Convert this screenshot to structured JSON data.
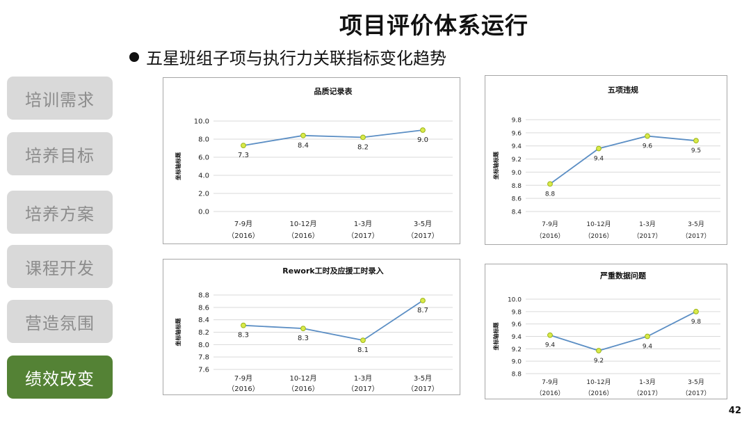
{
  "header": {
    "title": "项目评价体系运行",
    "subtitle": "五星班组子项与执行力关联指标变化趋势"
  },
  "sidebar": {
    "items": [
      {
        "label": "培训需求",
        "active": false
      },
      {
        "label": "培养目标",
        "active": false
      },
      {
        "label": "培养方案",
        "active": false
      },
      {
        "label": "课程开发",
        "active": false
      },
      {
        "label": "营造氛围",
        "active": false
      },
      {
        "label": "绩效改变",
        "active": true
      }
    ]
  },
  "page_number": "42",
  "colors": {
    "line": "#5b8ec4",
    "marker_fill": "#d9ea4a",
    "marker_stroke": "#9bb318",
    "grid": "#d9d9d9",
    "nav_inactive": "#d9d9d9",
    "nav_active": "#548235"
  },
  "chart_data": [
    {
      "type": "line",
      "title": "品质记录表",
      "ylabel": "坐标轴标题",
      "categories": [
        [
          "7-9月",
          "（2016）"
        ],
        [
          "10-12月",
          "（2016）"
        ],
        [
          "1-3月",
          "（2017）"
        ],
        [
          "3-5月",
          "（2017）"
        ]
      ],
      "values": [
        7.3,
        8.4,
        8.2,
        9.0
      ],
      "data_labels": [
        "7.3",
        "8.4",
        "8.2",
        "9.0"
      ],
      "label_position": [
        "below",
        "below",
        "below",
        "below"
      ],
      "ylim": [
        0,
        10
      ],
      "yticks": [
        "0.0",
        "2.0",
        "4.0",
        "6.0",
        "8.0",
        "10.0"
      ],
      "grid": true
    },
    {
      "type": "line",
      "title": "五项违规",
      "ylabel": "坐标轴标题",
      "categories": [
        [
          "7-9月",
          "（2016）"
        ],
        [
          "10-12月",
          "（2016）"
        ],
        [
          "1-3月",
          "（2017）"
        ],
        [
          "3-5月",
          "（2017）"
        ]
      ],
      "values": [
        8.82,
        9.36,
        9.55,
        9.48
      ],
      "data_labels": [
        "8.8",
        "9.4",
        "9.6",
        "9.5"
      ],
      "label_position": [
        "below",
        "below",
        "below",
        "below"
      ],
      "ylim": [
        8.4,
        9.8
      ],
      "yticks": [
        "8.4",
        "8.6",
        "8.8",
        "9.0",
        "9.2",
        "9.4",
        "9.6",
        "9.8"
      ],
      "grid": true
    },
    {
      "type": "line",
      "title": "Rework工时及应援工时录入",
      "ylabel": "坐标轴标题",
      "categories": [
        [
          "7-9月",
          "（2016）"
        ],
        [
          "10-12月",
          "（2016）"
        ],
        [
          "1-3月",
          "（2017）"
        ],
        [
          "3-5月",
          "（2017）"
        ]
      ],
      "values": [
        8.31,
        8.26,
        8.07,
        8.71
      ],
      "data_labels": [
        "8.3",
        "8.3",
        "8.1",
        "8.7"
      ],
      "label_position": [
        "below",
        "below",
        "below",
        "below"
      ],
      "ylim": [
        7.6,
        8.8
      ],
      "yticks": [
        "7.6",
        "7.8",
        "8.0",
        "8.2",
        "8.4",
        "8.6",
        "8.8"
      ],
      "grid": true
    },
    {
      "type": "line",
      "title": "严重数据问题",
      "ylabel": "坐标轴标题",
      "categories": [
        [
          "7-9月",
          "（2016）"
        ],
        [
          "10-12月",
          "（2016）"
        ],
        [
          "1-3月",
          "（2017）"
        ],
        [
          "3-5月",
          "（2017）"
        ]
      ],
      "values": [
        9.42,
        9.17,
        9.4,
        9.8
      ],
      "data_labels": [
        "9.4",
        "9.2",
        "9.4",
        "9.8"
      ],
      "label_position": [
        "below",
        "below",
        "below",
        "below"
      ],
      "ylim": [
        8.8,
        10.0
      ],
      "yticks": [
        "8.8",
        "9.0",
        "9.2",
        "9.4",
        "9.6",
        "9.8",
        "10.0"
      ],
      "grid": true
    }
  ]
}
